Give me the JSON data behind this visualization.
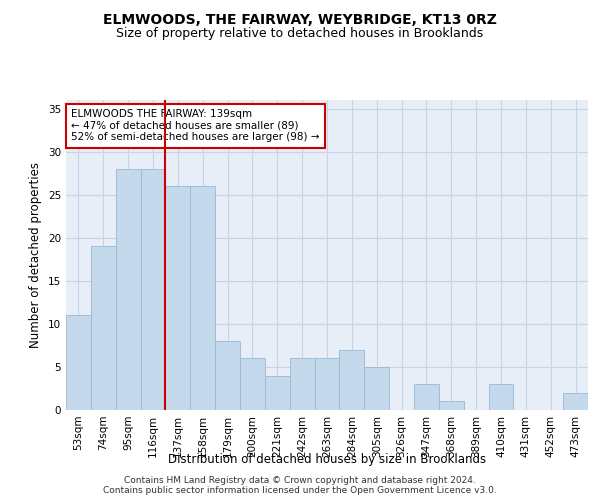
{
  "title": "ELMWOODS, THE FAIRWAY, WEYBRIDGE, KT13 0RZ",
  "subtitle": "Size of property relative to detached houses in Brooklands",
  "xlabel": "Distribution of detached houses by size in Brooklands",
  "ylabel": "Number of detached properties",
  "categories": [
    "53sqm",
    "74sqm",
    "95sqm",
    "116sqm",
    "137sqm",
    "158sqm",
    "179sqm",
    "200sqm",
    "221sqm",
    "242sqm",
    "263sqm",
    "284sqm",
    "305sqm",
    "326sqm",
    "347sqm",
    "368sqm",
    "389sqm",
    "410sqm",
    "431sqm",
    "452sqm",
    "473sqm"
  ],
  "values": [
    11,
    19,
    28,
    28,
    26,
    26,
    8,
    6,
    4,
    6,
    6,
    7,
    5,
    0,
    3,
    1,
    0,
    3,
    0,
    0,
    2
  ],
  "bar_color": "#c5d9ed",
  "bar_edge_color": "#9ab8d4",
  "vline_index": 4,
  "vline_color": "#cc0000",
  "annotation_line1": "ELMWOODS THE FAIRWAY: 139sqm",
  "annotation_line2": "← 47% of detached houses are smaller (89)",
  "annotation_line3": "52% of semi-detached houses are larger (98) →",
  "annotation_box_color": "#cc0000",
  "annotation_box_bg": "#ffffff",
  "ylim": [
    0,
    36
  ],
  "yticks": [
    0,
    5,
    10,
    15,
    20,
    25,
    30,
    35
  ],
  "grid_color": "#c8d4e4",
  "background_color": "#e8eef8",
  "footer_line1": "Contains HM Land Registry data © Crown copyright and database right 2024.",
  "footer_line2": "Contains public sector information licensed under the Open Government Licence v3.0.",
  "title_fontsize": 10,
  "subtitle_fontsize": 9,
  "xlabel_fontsize": 8.5,
  "ylabel_fontsize": 8.5,
  "tick_fontsize": 7.5,
  "annotation_fontsize": 7.5,
  "footer_fontsize": 6.5
}
